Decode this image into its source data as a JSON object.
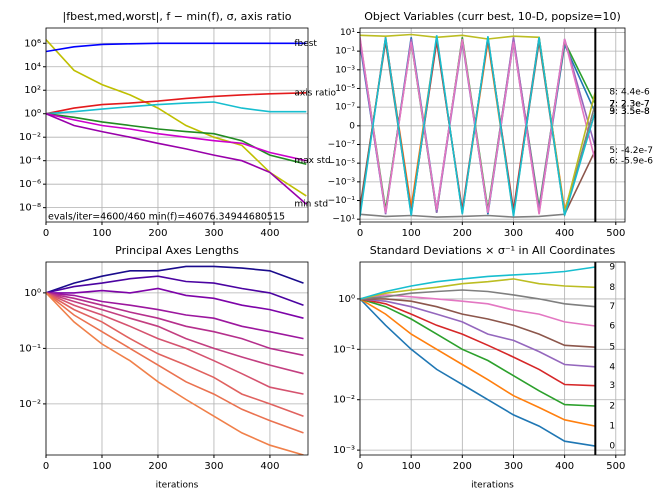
{
  "chart_data": [
    {
      "type": "line",
      "title": "|fbest,med,worst|, f − min(f), σ, axis ratio",
      "yscale": "log",
      "grid": true,
      "x": [
        0,
        50,
        100,
        150,
        200,
        250,
        300,
        350,
        400,
        465
      ],
      "xlim": [
        0,
        468
      ],
      "xticks": [
        0,
        100,
        200,
        300,
        400
      ],
      "ylim": [
        6e-10,
        20000000.0
      ],
      "yticks": [
        {
          "value": 1e-08,
          "label": "10⁻⁸"
        },
        {
          "value": 1e-06,
          "label": "10⁻⁶"
        },
        {
          "value": 0.0001,
          "label": "10⁻⁴"
        },
        {
          "value": 0.01,
          "label": "10⁻²"
        },
        {
          "value": 1,
          "label": "10⁰"
        },
        {
          "value": 100,
          "label": "10²"
        },
        {
          "value": 10000,
          "label": "10⁴"
        },
        {
          "value": 1000000,
          "label": "10⁶"
        }
      ],
      "annotation": "evals/iter=4600/460 min(f)=46076.34944680515",
      "series": [
        {
          "color": "#bfbf00",
          "values": [
            2000000,
            5000,
            300,
            40,
            3,
            0.1,
            0.01,
            0.002,
            1e-05,
            1e-07
          ]
        },
        {
          "name": "axis ratio",
          "color": "#e31a1c",
          "values": [
            1,
            3,
            6,
            8,
            12,
            20,
            30,
            40,
            50,
            60
          ]
        },
        {
          "color": "#17becf",
          "values": [
            1,
            1.5,
            2.5,
            4,
            6,
            8,
            10,
            3,
            1.5,
            1.5
          ]
        },
        {
          "color": "#228b22",
          "values": [
            1,
            0.5,
            0.2,
            0.1,
            0.05,
            0.03,
            0.02,
            0.005,
            0.0003,
            5e-05
          ]
        },
        {
          "name": "max std",
          "color": "#cc00cc",
          "values": [
            1,
            0.3,
            0.1,
            0.05,
            0.02,
            0.01,
            0.005,
            0.003,
            0.0005,
            0.0001
          ]
        },
        {
          "name": "min std",
          "color": "#9900aa",
          "values": [
            1,
            0.1,
            0.03,
            0.01,
            0.003,
            0.001,
            0.0003,
            0.0001,
            1e-05,
            2e-08
          ]
        },
        {
          "name": "fbest",
          "color": "#0000ff",
          "values": [
            200000,
            500000,
            800000,
            900000,
            1000000,
            1000000,
            1000000,
            1000000,
            1000000,
            1000000
          ]
        }
      ]
    },
    {
      "type": "line",
      "title": "Object Variables (curr best, 10-D, popsize=10)",
      "yscale": "symlog",
      "linthresh": 1e-08,
      "grid": true,
      "x": [
        0,
        50,
        100,
        150,
        200,
        250,
        300,
        350,
        400,
        460
      ],
      "xlim": [
        0,
        518
      ],
      "xticks": [
        0,
        100,
        200,
        300,
        400,
        500
      ],
      "ylim": [
        -20,
        30
      ],
      "vline": 460,
      "yticks": [
        {
          "value": 10,
          "label": "10¹"
        },
        {
          "value": 0.1,
          "label": "10⁻¹"
        },
        {
          "value": 0.001,
          "label": "10⁻³"
        },
        {
          "value": 1e-05,
          "label": "10⁻⁵"
        },
        {
          "value": 1e-07,
          "label": "10⁻⁷"
        },
        0,
        {
          "value": -1e-07,
          "label": "−10⁻⁷"
        },
        {
          "value": -1e-05,
          "label": "−10⁻⁵"
        },
        {
          "value": -0.001,
          "label": "−10⁻³"
        },
        {
          "value": -0.1,
          "label": "−10⁻¹"
        },
        {
          "value": -10,
          "label": "−10¹"
        }
      ],
      "series": [
        {
          "color": "#1f77b4",
          "values": [
            0.5,
            -2,
            3,
            -1,
            2,
            -3,
            1,
            -2,
            0.5,
            2.6e-08
          ]
        },
        {
          "color": "#ff7f0e",
          "values": [
            -1,
            2,
            -0.5,
            3,
            -2,
            1,
            -3,
            2,
            -1,
            3.1e-08
          ]
        },
        {
          "name": "2: 2.3e-7",
          "color": "#2ca02c",
          "values": [
            2,
            -1,
            1,
            -2,
            3,
            -1,
            2,
            -0.5,
            1,
            2.3e-07
          ]
        },
        {
          "name": "3: 3.5e-8",
          "color": "#d62728",
          "values": [
            -2,
            3,
            -2,
            1,
            -1,
            2,
            -1,
            3,
            -2,
            3.5e-08
          ]
        },
        {
          "color": "#9467bd",
          "values": [
            1,
            -3,
            2,
            -2,
            1,
            -2,
            3,
            -1,
            2,
            -2e-07
          ]
        },
        {
          "name": "5: -4.2e-7",
          "color": "#8c564b",
          "values": [
            -0.5,
            1,
            -3,
            2,
            -2,
            3,
            -2,
            1,
            -3,
            -4.2e-07
          ]
        },
        {
          "name": "6: -5.9e-6",
          "color": "#e377c2",
          "values": [
            3,
            -2,
            1,
            -1,
            2,
            -2,
            1,
            -3,
            2,
            -5.9e-06
          ]
        },
        {
          "name": "7: 2.3e-7",
          "color": "#7f7f7f",
          "values": [
            -3,
            -5,
            -4,
            -6,
            -5,
            -4,
            -6,
            -5,
            -3,
            2.3e-07
          ]
        },
        {
          "name": "8: 4.4e-6",
          "color": "#bcbd22",
          "values": [
            5,
            4,
            6,
            3,
            5,
            2,
            4,
            3,
            -2,
            4.4e-06
          ]
        },
        {
          "name": "9: 3.5e-8",
          "color": "#17becf",
          "values": [
            -5,
            3,
            -4,
            5,
            -3,
            4,
            -5,
            3,
            -4,
            3.5e-08
          ]
        }
      ]
    },
    {
      "type": "line",
      "title": "Principal Axes Lengths",
      "xlabel": "iterations",
      "yscale": "log",
      "grid": true,
      "x": [
        0,
        50,
        100,
        150,
        200,
        250,
        300,
        350,
        400,
        460
      ],
      "xlim": [
        0,
        468
      ],
      "xticks": [
        0,
        100,
        200,
        300,
        400
      ],
      "ylim": [
        0.0012,
        3.6
      ],
      "yticks": [
        {
          "value": 0.01,
          "label": "10⁻²"
        },
        {
          "value": 0.1,
          "label": "10⁻¹"
        },
        {
          "value": 1,
          "label": "10⁰"
        }
      ],
      "series": [
        {
          "color": "#1a0b8c",
          "values": [
            1,
            1.5,
            2,
            2.5,
            2.5,
            3,
            3,
            2.8,
            2.5,
            1.5
          ]
        },
        {
          "color": "#4b03a1",
          "values": [
            1,
            1.3,
            1.5,
            1.8,
            2,
            1.6,
            1.5,
            1.2,
            1,
            0.6
          ]
        },
        {
          "color": "#7d03a8",
          "values": [
            1,
            1,
            1.1,
            1,
            1.2,
            0.9,
            0.8,
            0.6,
            0.5,
            0.35
          ]
        },
        {
          "color": "#9c179e",
          "values": [
            1,
            0.9,
            0.7,
            0.6,
            0.5,
            0.4,
            0.35,
            0.25,
            0.2,
            0.15
          ]
        },
        {
          "color": "#b52f8c",
          "values": [
            1,
            0.8,
            0.6,
            0.45,
            0.35,
            0.25,
            0.2,
            0.15,
            0.1,
            0.075
          ]
        },
        {
          "color": "#c33f80",
          "values": [
            1,
            0.7,
            0.5,
            0.35,
            0.25,
            0.15,
            0.1,
            0.07,
            0.05,
            0.035
          ]
        },
        {
          "color": "#d5536f",
          "values": [
            1,
            0.6,
            0.4,
            0.25,
            0.15,
            0.1,
            0.06,
            0.035,
            0.02,
            0.015
          ]
        },
        {
          "color": "#e0625f",
          "values": [
            1,
            0.5,
            0.3,
            0.15,
            0.08,
            0.05,
            0.03,
            0.015,
            0.01,
            0.006
          ]
        },
        {
          "color": "#ea7250",
          "values": [
            1,
            0.4,
            0.2,
            0.1,
            0.05,
            0.025,
            0.015,
            0.008,
            0.005,
            0.003
          ]
        },
        {
          "color": "#f0804a",
          "values": [
            1,
            0.3,
            0.12,
            0.06,
            0.025,
            0.012,
            0.006,
            0.003,
            0.0018,
            0.0012
          ]
        }
      ]
    },
    {
      "type": "line",
      "title": "Standard Deviations × σ⁻¹ in All Coordinates",
      "xlabel": "iterations",
      "yscale": "log",
      "grid": true,
      "x": [
        0,
        50,
        100,
        150,
        200,
        250,
        300,
        350,
        400,
        460
      ],
      "xlim": [
        0,
        518
      ],
      "xticks": [
        0,
        100,
        200,
        300,
        400,
        500
      ],
      "ylim": [
        0.0008,
        5.4
      ],
      "vline": 460,
      "yticks": [
        {
          "value": 0.001,
          "label": "10⁻³"
        },
        {
          "value": 0.01,
          "label": "10⁻²"
        },
        {
          "value": 0.1,
          "label": "10⁻¹"
        },
        {
          "value": 1,
          "label": "10⁰"
        }
      ],
      "series": [
        {
          "name": "0",
          "color": "#1f77b4",
          "values": [
            1,
            0.3,
            0.1,
            0.04,
            0.02,
            0.01,
            0.005,
            0.003,
            0.0015,
            0.0012
          ]
        },
        {
          "name": "1",
          "color": "#ff7f0e",
          "values": [
            1,
            0.5,
            0.2,
            0.1,
            0.05,
            0.025,
            0.012,
            0.007,
            0.004,
            0.003
          ]
        },
        {
          "name": "2",
          "color": "#2ca02c",
          "values": [
            1,
            0.7,
            0.4,
            0.2,
            0.1,
            0.06,
            0.03,
            0.015,
            0.008,
            0.0075
          ]
        },
        {
          "name": "3",
          "color": "#d62728",
          "values": [
            1,
            0.8,
            0.5,
            0.3,
            0.2,
            0.12,
            0.07,
            0.04,
            0.02,
            0.019
          ]
        },
        {
          "name": "4",
          "color": "#9467bd",
          "values": [
            1,
            0.9,
            0.7,
            0.5,
            0.35,
            0.2,
            0.15,
            0.09,
            0.05,
            0.045
          ]
        },
        {
          "name": "5",
          "color": "#8c564b",
          "values": [
            1,
            1,
            0.9,
            0.7,
            0.5,
            0.4,
            0.3,
            0.2,
            0.12,
            0.11
          ]
        },
        {
          "name": "6",
          "color": "#e377c2",
          "values": [
            1,
            1.2,
            1.1,
            1,
            0.9,
            0.8,
            0.6,
            0.5,
            0.35,
            0.29
          ]
        },
        {
          "name": "7",
          "color": "#7f7f7f",
          "values": [
            1,
            1.1,
            1.3,
            1.4,
            1.5,
            1.4,
            1.2,
            1,
            0.8,
            0.7
          ]
        },
        {
          "name": "8",
          "color": "#bcbd22",
          "values": [
            1,
            1.3,
            1.5,
            1.7,
            2,
            2.2,
            2.5,
            2,
            1.8,
            1.7
          ]
        },
        {
          "name": "9",
          "color": "#17becf",
          "values": [
            1,
            1.4,
            1.8,
            2.2,
            2.5,
            2.8,
            3,
            3.2,
            3.5,
            4.3
          ]
        }
      ]
    }
  ]
}
